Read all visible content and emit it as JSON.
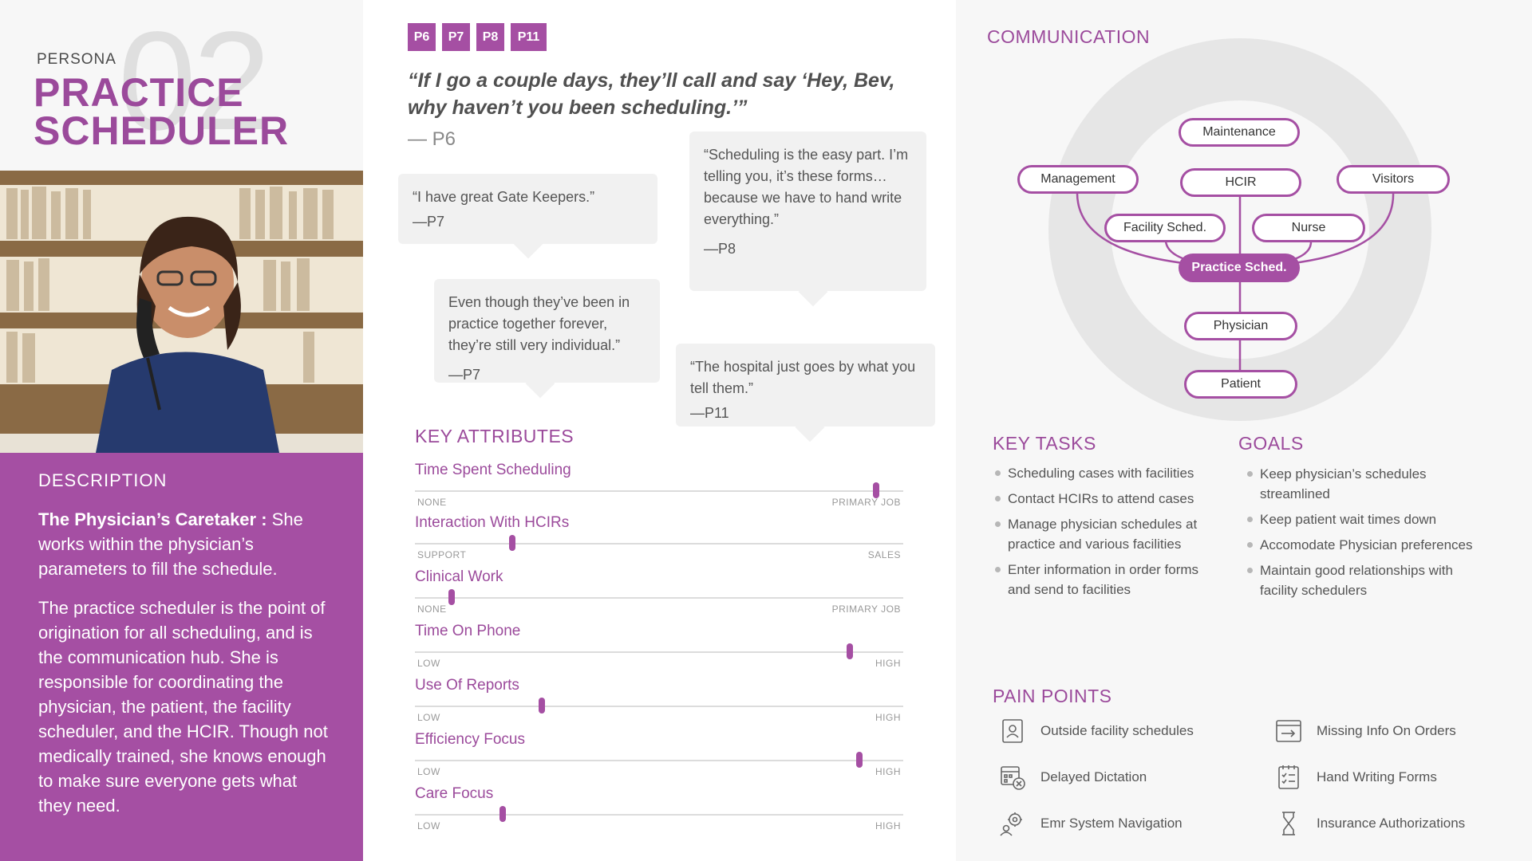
{
  "persona": {
    "label": "PERSONA",
    "number": "02",
    "title_line1": "PRACTICE",
    "title_line2": "SCHEDULER"
  },
  "description": {
    "heading": "DESCRIPTION",
    "lead_bold": "The Physician’s Caretaker :",
    "lead_rest": " She works within the physician’s parameters to fill the schedule.",
    "body": "The practice scheduler is the point of origination for all scheduling, and is the communication hub. She is responsible for coordinating the physician, the patient, the facility scheduler, and the HCIR. Though not medically trained, she knows enough to make sure everyone gets what they need."
  },
  "tags": [
    "P6",
    "P7",
    "P8",
    "P11"
  ],
  "main_quote": {
    "text": "“If I go a couple days, they’ll call and say ‘Hey, Bev, why haven’t you been scheduling.’”",
    "attribution": "— P6"
  },
  "quotes": [
    {
      "text": "“I have great Gate Keepers.”",
      "who": "—P7"
    },
    {
      "text": "“Scheduling is the easy part. I’m telling you, it’s these forms… because we have to hand write everything.”",
      "who": "—P8"
    },
    {
      "text": "Even though they’ve been in practice together forever, they’re still very individual.”",
      "who": "—P7"
    },
    {
      "text": "“The hospital just goes by what you tell them.”",
      "who": "—P11"
    }
  ],
  "key_attributes": {
    "heading": "KEY ATTRIBUTES",
    "items": [
      {
        "name": "Time Spent Scheduling",
        "low": "NONE",
        "high": "PRIMARY JOB",
        "value": 0.945
      },
      {
        "name": "Interaction With HCIRs",
        "low": "SUPPORT",
        "high": "SALES",
        "value": 0.2
      },
      {
        "name": "Clinical Work",
        "low": "NONE",
        "high": "PRIMARY JOB",
        "value": 0.075
      },
      {
        "name": "Time On Phone",
        "low": "LOW",
        "high": "HIGH",
        "value": 0.89
      },
      {
        "name": "Use Of Reports",
        "low": "LOW",
        "high": "HIGH",
        "value": 0.26
      },
      {
        "name": "Efficiency Focus",
        "low": "LOW",
        "high": "HIGH",
        "value": 0.91
      },
      {
        "name": "Care Focus",
        "low": "LOW",
        "high": "HIGH",
        "value": 0.18
      }
    ]
  },
  "communication": {
    "heading": "COMMUNICATION",
    "nodes": {
      "maintenance": "Maintenance",
      "management": "Management",
      "hcir": "HCIR",
      "visitors": "Visitors",
      "facility": "Facility Sched.",
      "nurse": "Nurse",
      "practice": "Practice Sched.",
      "physician": "Physician",
      "patient": "Patient"
    }
  },
  "key_tasks": {
    "heading": "KEY TASKS",
    "items": [
      "Scheduling  cases with facilities",
      "Contact HCIRs to attend cases",
      "Manage physician schedules at practice and various facilities",
      "Enter information in order forms and send to facilities"
    ]
  },
  "goals": {
    "heading": "GOALS",
    "items": [
      "Keep physician’s schedules streamlined",
      "Keep patient wait times down",
      "Accomodate Physician preferences",
      "Maintain good relationships with facility schedulers"
    ]
  },
  "pain_points": {
    "heading": "PAIN POINTS",
    "items": [
      {
        "label": "Outside facility schedules",
        "icon": "schedule-contact-icon"
      },
      {
        "label": "Missing Info On Orders",
        "icon": "missing-info-icon"
      },
      {
        "label": "Delayed Dictation",
        "icon": "delayed-calendar-icon"
      },
      {
        "label": "Hand Writing Forms",
        "icon": "checklist-icon"
      },
      {
        "label": "Emr System Navigation",
        "icon": "gear-user-icon"
      },
      {
        "label": "Insurance Authorizations",
        "icon": "hourglass-icon"
      }
    ]
  },
  "colors": {
    "accent": "#a54fa3",
    "panel": "#f7f7f7",
    "bubble": "#f1f1f1"
  }
}
